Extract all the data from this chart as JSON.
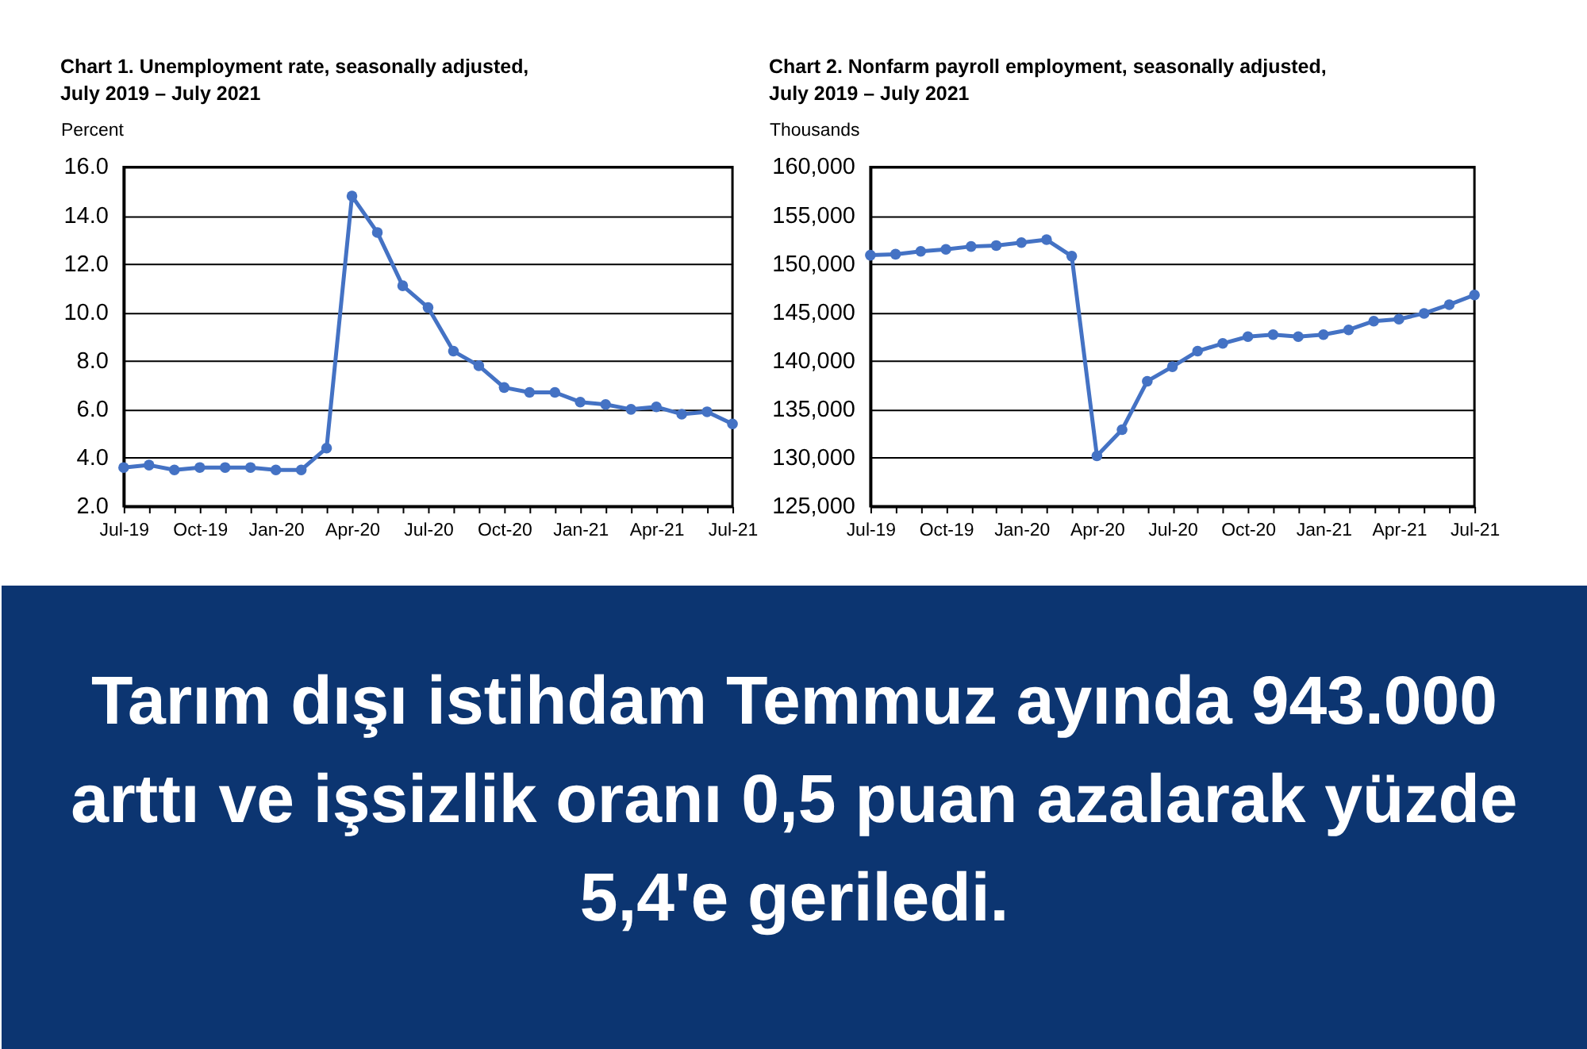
{
  "chart_data": [
    {
      "type": "line",
      "title": "Chart 1. Unemployment rate, seasonally adjusted, July 2019 – July 2021",
      "ylabel": "Percent",
      "categories": [
        "Jul-19",
        null,
        null,
        "Oct-19",
        null,
        null,
        "Jan-20",
        null,
        null,
        "Apr-20",
        null,
        null,
        "Jul-20",
        null,
        null,
        "Oct-20",
        null,
        null,
        "Jan-21",
        null,
        null,
        "Apr-21",
        null,
        null,
        "Jul-21"
      ],
      "series": [
        {
          "color": "#4472c4",
          "values": [
            3.6,
            3.7,
            3.5,
            3.6,
            3.6,
            3.6,
            3.5,
            3.5,
            4.4,
            14.8,
            13.3,
            11.1,
            10.2,
            8.4,
            7.8,
            6.9,
            6.7,
            6.7,
            6.3,
            6.2,
            6.0,
            6.1,
            5.8,
            5.9,
            5.4
          ]
        }
      ],
      "ylim": [
        2,
        16
      ],
      "yticks": [
        {
          "value": 2,
          "label": "2.0"
        },
        {
          "value": 4,
          "label": "4.0"
        },
        {
          "value": 6,
          "label": "6.0"
        },
        {
          "value": 8,
          "label": "8.0"
        },
        {
          "value": 10,
          "label": "10.0"
        },
        {
          "value": 12,
          "label": "12.0"
        },
        {
          "value": 14,
          "label": "14.0"
        },
        {
          "value": 16,
          "label": "16.0"
        }
      ],
      "grid": "y",
      "marker": "circle",
      "line_style": "solid"
    },
    {
      "type": "line",
      "title": "Chart 2. Nonfarm payroll employment, seasonally adjusted, July 2019 – July 2021",
      "ylabel": "Thousands",
      "categories": [
        "Jul-19",
        null,
        null,
        "Oct-19",
        null,
        null,
        "Jan-20",
        null,
        null,
        "Apr-20",
        null,
        null,
        "Jul-20",
        null,
        null,
        "Oct-20",
        null,
        null,
        "Jan-21",
        null,
        null,
        "Apr-21",
        null,
        null,
        "Jul-21"
      ],
      "series": [
        {
          "color": "#4472c4",
          "values": [
            150900,
            151000,
            151300,
            151500,
            151800,
            151900,
            152200,
            152500,
            150800,
            130200,
            132900,
            137900,
            139400,
            141000,
            141800,
            142500,
            142700,
            142500,
            142700,
            143200,
            144100,
            144300,
            144900,
            145800,
            146800
          ]
        }
      ],
      "ylim": [
        125000,
        160000
      ],
      "yticks": [
        {
          "value": 125000,
          "label": "125,000"
        },
        {
          "value": 130000,
          "label": "130,000"
        },
        {
          "value": 135000,
          "label": "135,000"
        },
        {
          "value": 140000,
          "label": "140,000"
        },
        {
          "value": 145000,
          "label": "145,000"
        },
        {
          "value": 150000,
          "label": "150,000"
        },
        {
          "value": 155000,
          "label": "155,000"
        },
        {
          "value": 160000,
          "label": "160,000"
        }
      ],
      "grid": "y",
      "marker": "circle",
      "line_style": "solid"
    },
    {
      "type": "other",
      "title": "Tarım dışı istihdam Temmuz ayında 943.000 arttı ve işsizlik oranı 0,5 puan azalarak yüzde 5,4'e geriledi."
    }
  ]
}
